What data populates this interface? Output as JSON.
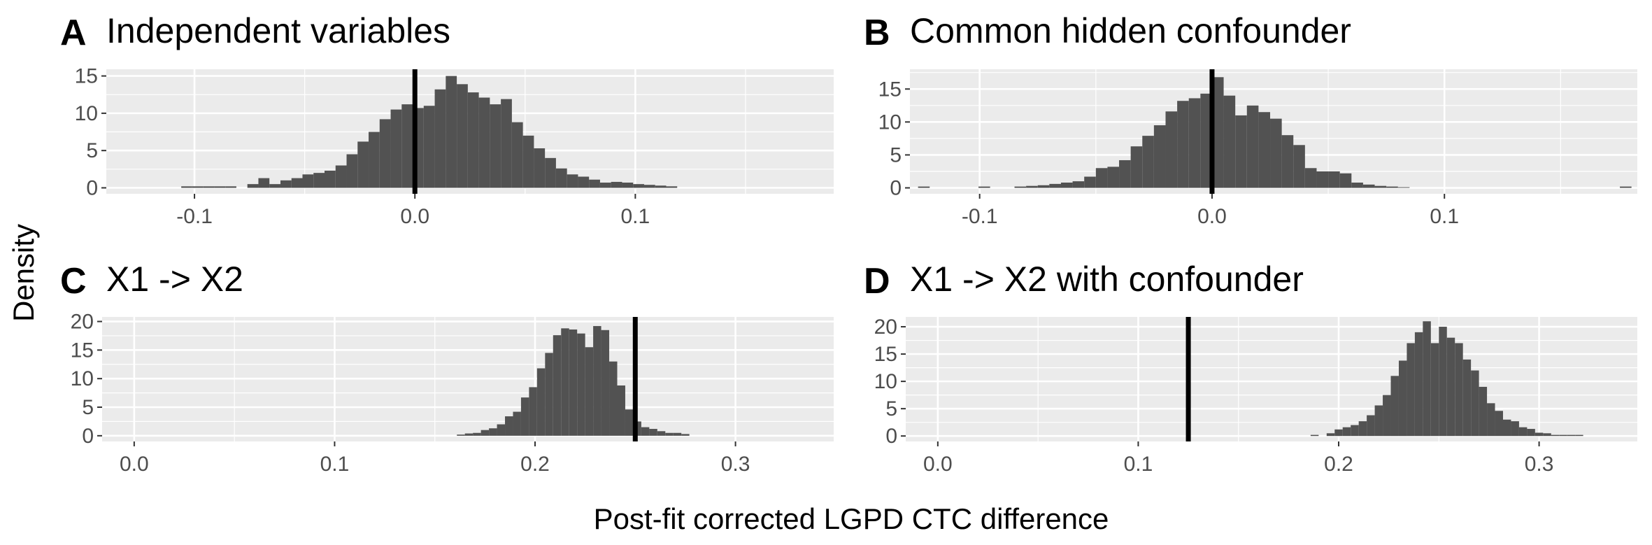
{
  "figure": {
    "xlabel": "Post-fit corrected LGPD CTC difference",
    "ylabel": "Density"
  },
  "colors": {
    "panel_background": "#ebebeb",
    "grid": "#ffffff",
    "bar_fill": "#525252",
    "reference_line": "#000000",
    "tick_text": "#4d4d4d"
  },
  "chart_data": [
    {
      "id": "A",
      "type": "bar",
      "letter": "A",
      "title": "Independent variables",
      "xlim": [
        -0.14,
        0.19
      ],
      "ylim": [
        -0.8,
        15.9
      ],
      "xticks": [
        -0.1,
        0.0,
        0.1
      ],
      "xtick_labels": [
        "-0.1",
        "0.0",
        "0.1"
      ],
      "yticks": [
        0,
        5,
        10,
        15
      ],
      "ytick_labels": [
        "0",
        "5",
        "10",
        "15"
      ],
      "vline": 0.0,
      "bins": {
        "start": -0.106,
        "width": 0.005,
        "values": [
          0.2,
          0.2,
          0.2,
          0.2,
          0.2,
          0,
          0.5,
          1.3,
          0.5,
          1.0,
          1.3,
          1.8,
          2.0,
          2.3,
          3.0,
          4.5,
          6.2,
          7.5,
          9.2,
          10.5,
          11.2,
          10.7,
          11.0,
          13.2,
          15.0,
          13.9,
          12.8,
          12.1,
          11.2,
          11.9,
          8.8,
          7.0,
          5.3,
          4.0,
          2.6,
          1.8,
          1.5,
          1.1,
          0.7,
          0.8,
          0.7,
          0.5,
          0.4,
          0.3,
          0.2
        ]
      }
    },
    {
      "id": "B",
      "type": "bar",
      "letter": "B",
      "title": "Common hidden confounder",
      "xlim": [
        -0.13,
        0.183
      ],
      "ylim": [
        -0.9,
        18.0
      ],
      "xticks": [
        -0.1,
        0.0,
        0.1
      ],
      "xtick_labels": [
        "-0.1",
        "0.0",
        "0.1"
      ],
      "yticks": [
        0,
        5,
        10,
        15
      ],
      "ytick_labels": [
        "0",
        "5",
        "10",
        "15"
      ],
      "vline": 0.0,
      "bins": {
        "start": -0.085,
        "width": 0.005,
        "values": [
          0.2,
          0.3,
          0.4,
          0.6,
          0.8,
          1.0,
          1.7,
          3.0,
          3.2,
          4.2,
          6.3,
          7.9,
          9.5,
          11.6,
          13.2,
          13.6,
          14.3,
          16.8,
          14.0,
          11.0,
          12.5,
          11.5,
          10.5,
          8.0,
          6.5,
          3.0,
          2.5,
          2.5,
          2.2,
          0.8,
          0.5,
          0.3,
          0.2,
          0.1
        ]
      },
      "outliers": [
        {
          "x": -0.124,
          "value": 0.2
        },
        {
          "x": -0.098,
          "value": 0.2
        },
        {
          "x": 0.178,
          "value": 0.2
        }
      ]
    },
    {
      "id": "C",
      "type": "bar",
      "letter": "C",
      "title": "X1 -> X2",
      "xlim": [
        -0.016,
        0.349
      ],
      "ylim": [
        -1.0,
        20.8
      ],
      "xticks": [
        0.0,
        0.1,
        0.2,
        0.3
      ],
      "xtick_labels": [
        "0.0",
        "0.1",
        "0.2",
        "0.3"
      ],
      "yticks": [
        0,
        5,
        10,
        15,
        20
      ],
      "ytick_labels": [
        "0",
        "5",
        "10",
        "15",
        "20"
      ],
      "vline": 0.25,
      "bins": {
        "start": 0.161,
        "width": 0.004,
        "values": [
          0.2,
          0.4,
          0.5,
          1.0,
          1.3,
          2.0,
          3.4,
          4.2,
          6.7,
          8.5,
          11.8,
          14.5,
          17.6,
          18.8,
          18.6,
          17.9,
          15.5,
          19.2,
          18.5,
          13.0,
          8.8,
          4.6,
          2.5,
          1.5,
          1.2,
          0.8,
          0.5,
          0.5,
          0.3
        ]
      }
    },
    {
      "id": "D",
      "type": "bar",
      "letter": "D",
      "title": "X1 -> X2 with confounder",
      "xlim": [
        -0.016,
        0.349
      ],
      "ylim": [
        -1.0,
        21.8
      ],
      "xticks": [
        0.0,
        0.1,
        0.2,
        0.3
      ],
      "xtick_labels": [
        "0.0",
        "0.1",
        "0.2",
        "0.3"
      ],
      "yticks": [
        0,
        5,
        10,
        15,
        20
      ],
      "ytick_labels": [
        "0",
        "5",
        "10",
        "15",
        "20"
      ],
      "vline": 0.125,
      "bins": {
        "start": 0.186,
        "width": 0.004,
        "values": [
          0.2,
          0,
          0.5,
          1.2,
          1.6,
          2.0,
          2.7,
          3.8,
          5.6,
          7.5,
          11.0,
          13.8,
          17.0,
          19.0,
          21.0,
          17.0,
          20.0,
          18.0,
          17.0,
          14.0,
          12.0,
          9.0,
          6.0,
          4.6,
          3.0,
          2.7,
          1.6,
          1.3,
          0.6,
          0.5,
          0.2,
          0.2,
          0.2,
          0.2
        ]
      }
    }
  ]
}
